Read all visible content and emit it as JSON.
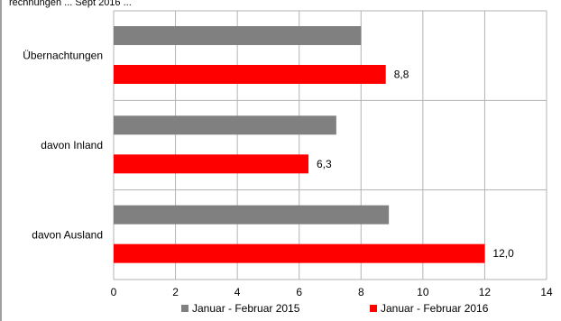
{
  "chart_data": {
    "type": "bar",
    "orientation": "horizontal",
    "note": "rechnungen ... Sept 2016 ...",
    "categories": [
      "Übernachtungen",
      "davon Inland",
      "davon Ausland"
    ],
    "series": [
      {
        "name": "Januar - Februar 2015",
        "values": [
          8.0,
          7.2,
          8.9
        ],
        "color": "#808080",
        "labels": [
          "",
          "",
          ""
        ]
      },
      {
        "name": "Januar - Februar 2016",
        "values": [
          8.8,
          6.3,
          12.0
        ],
        "color": "#ff0000",
        "labels": [
          "8,8",
          "6,3",
          "12,0"
        ]
      }
    ],
    "x_ticks": [
      "0",
      "2",
      "4",
      "6",
      "8",
      "10",
      "12",
      "14"
    ],
    "xlim": [
      0,
      14
    ],
    "grid": "vertical",
    "legend_position": "bottom"
  }
}
